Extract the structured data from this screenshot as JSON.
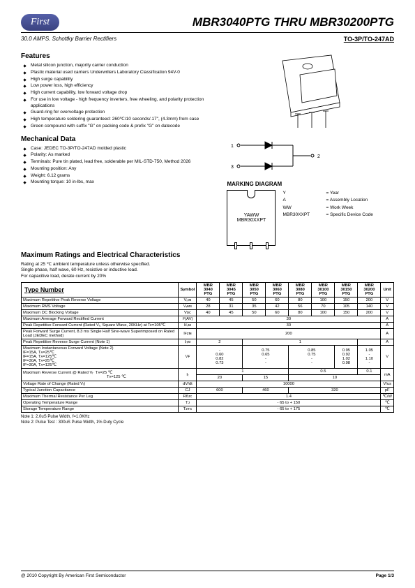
{
  "logo_text": "First",
  "title": "MBR3040PTG THRU MBR30200PTG",
  "subtitle": "30.0 AMPS. Schottky Barrier Rectifiers",
  "package_label": "TO-3P/TO-247AD",
  "features_heading": "Features",
  "features": [
    "Metal silicon junction, majority carrier conduction",
    "Plastic material used carriers Underwriters Laboratory Classification 94V-0",
    "High surge capability",
    "Low power loss, high efficiency",
    "High current capability, low forward voltage drop",
    "For use in low voltage - high frequency inverters, free wheeling, and polarity protection applications",
    "Guard-ring for overvoltage protection",
    "High temperature soldering guaranteed: 260℃/10 seconds/.17\", (4.3mm) from case",
    "Green compound with suffix \"G\" on packing code & prefix \"G\" on datecode"
  ],
  "mech_heading": "Mechanical Data",
  "mech": [
    "Case: JEDEC TO-3P/TO-247AD molded plastic",
    "Polarity: As marked",
    "Terminals: Pure tin plated, lead free, solderable per MIL-STD-750, Method 2026",
    "Mounting position: Any",
    "Weight: 6.12 grams",
    "Mounting torque: 10 in-lbs, max"
  ],
  "marking_heading": "MARKING DIAGRAM",
  "chip_line1": "YAWW",
  "chip_line2": "MBR30XXPT",
  "legend": [
    {
      "k": "Y",
      "v": "= Year"
    },
    {
      "k": "A",
      "v": "= Assembly Location"
    },
    {
      "k": "WW",
      "v": "= Work Week"
    },
    {
      "k": "MBR30XXPT",
      "v": "= Specific Device Code"
    }
  ],
  "ratings_heading": "Maximum Ratings and Electrical Characteristics",
  "ratings_intro": [
    "Rating at 25 ℃ ambient temperature unless otherwise specified.",
    "Single phase, half wave, 60 Hz, resistive or inductive load.",
    "For capacitive load, derate current by 20%"
  ],
  "table": {
    "type_label": "Type Number",
    "symbol_label": "Symbol",
    "unit_label": "Unit",
    "parts": [
      "MBR 3040 PTG",
      "MBR 3045 PTG",
      "MBR 3050 PTG",
      "MBR 3060 PTG",
      "MBR 3080 PTG",
      "MBR 30100 PTG",
      "MBR 30150 PTG",
      "MBR 30200 PTG"
    ],
    "rows": [
      {
        "param": "Maximum Repetitive Peak Reverse Voltage",
        "sym": "Vᵣᵣᴍ",
        "vals": [
          "40",
          "45",
          "50",
          "60",
          "80",
          "100",
          "150",
          "200"
        ],
        "unit": "V"
      },
      {
        "param": "Maximum RMS Voltage",
        "sym": "Vᵣᴍs",
        "vals": [
          "28",
          "31",
          "35",
          "42",
          "56",
          "70",
          "105",
          "140"
        ],
        "unit": "V"
      },
      {
        "param": "Maximum DC Blocking Voltage",
        "sym": "Vᴅᴄ",
        "vals": [
          "40",
          "45",
          "50",
          "60",
          "80",
          "100",
          "150",
          "200"
        ],
        "unit": "V"
      },
      {
        "param": "Maximum Average Forward Rectified Current",
        "sym": "Iᵒ(AV)",
        "span": "30",
        "unit": "A"
      },
      {
        "param": "Peak Repetitive Forward Current (Rated Vᵣ, Square Wave, 20KHz) at Tc=105℃",
        "sym": "Iꜰᵣᴍ",
        "span": "30",
        "unit": "A"
      },
      {
        "param": "Peak Forward Surge Current, 8.3 ms Single Half Sine-wave Superimposed on Rated Load (JEDEC method)",
        "sym": "Iꜰᴢᴍ",
        "span": "200",
        "unit": "A"
      },
      {
        "param": "Peak Repetitive Reverse Surge Current (Note 1)",
        "sym": "Iᵣᵣᴍ",
        "groups": [
          {
            "span": 2,
            "val": "2"
          },
          {
            "span": 5,
            "val": "1"
          },
          {
            "span": 1,
            "val": ""
          }
        ],
        "unit": "A"
      }
    ],
    "vf": {
      "param": "Maximum Instantaneous Forward Voltage (Note 2)",
      "conds": [
        "IF=15A, Tᴀ=25℃",
        "IF=15A, Tᴀ=125℃",
        "IF=30A, Tᴀ=25℃",
        "IF=30A, Tᴀ=125℃"
      ],
      "sym": "Vꜰ",
      "cols": [
        [
          "-",
          "0.60",
          "0.82",
          "0.73"
        ],
        [
          "0.75",
          "0.65",
          "-",
          "-"
        ],
        [
          "0.85",
          "0.75",
          "-",
          "-"
        ],
        [
          "0.95",
          "0.92",
          "1.02",
          "0.98"
        ],
        [
          "1.05",
          "-",
          "1.10",
          "-"
        ]
      ],
      "col_spans": [
        2,
        2,
        2,
        1,
        1
      ],
      "unit": "V"
    },
    "ir": {
      "param": "Maximum Reverse Current @ Rated Vᵣ",
      "conds": [
        "Tᴀ=25 ℃",
        "Tᴀ=125 ℃"
      ],
      "sym": "Iᵣ",
      "row1": [
        {
          "span": 4,
          "val": "1"
        },
        {
          "span": 3,
          "val": "0.5"
        },
        {
          "span": 1,
          "val": "0.1"
        }
      ],
      "row2": [
        {
          "span": 2,
          "val": "20"
        },
        {
          "span": 2,
          "val": "15"
        },
        {
          "span": 4,
          "val": "10"
        }
      ],
      "unit": "mA"
    },
    "rows2": [
      {
        "param": "Voltage Rate of Change (Rated Vᵣ)",
        "sym": "dV/dt",
        "span": "10000",
        "unit": "V/us"
      },
      {
        "param": "Typical Junction Capacitance",
        "sym": "CJ",
        "groups": [
          {
            "span": 2,
            "val": "600"
          },
          {
            "span": 2,
            "val": "460"
          },
          {
            "span": 4,
            "val": "320"
          }
        ],
        "unit": "pF"
      },
      {
        "param": "Maximum Thermal Resistance Per Leg",
        "sym": "Rθᴊc",
        "span": "1.4",
        "unit": "℃/W"
      },
      {
        "param": "Operating Temperature Range",
        "sym": "Tᴊ",
        "span": "- 65 to + 150",
        "unit": "℃"
      },
      {
        "param": "Storage Temperature Range",
        "sym": "Tᴢᴛɢ",
        "span": "- 65 to + 175",
        "unit": "℃"
      }
    ]
  },
  "notes": [
    "Note 1: 2.0uS Pulse Width, f=1.0KHz",
    "Note 2: Pulse Test : 300uS Pulse Width, 1% Duty Cycle"
  ],
  "footer_left": "@ 2010 Copyright By American First Semiconductor",
  "footer_right": "Page 1/3"
}
